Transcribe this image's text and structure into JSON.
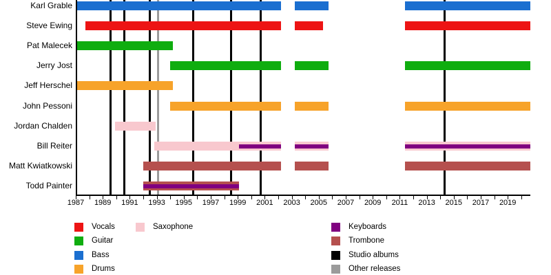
{
  "chart_data": {
    "type": "timeline",
    "axis": {
      "start_year": 1987,
      "end_year": 2020.7,
      "label_years": [
        1987,
        1989,
        1991,
        1993,
        1995,
        1997,
        1999,
        2001,
        2003,
        2005,
        2007,
        2009,
        2011,
        2013,
        2015,
        2017,
        2019
      ],
      "minor_tick_every_year": true
    },
    "colors": {
      "vocals": "#ED1414",
      "guitar": "#0FAD0F",
      "bass": "#1B6FD0",
      "drums": "#F7A32A",
      "saxophone": "#F8C8CE",
      "keyboards": "#800080",
      "trombone": "#B5504E",
      "studio_albums": "#000000",
      "other_releases": "#9B9B9B"
    },
    "members": [
      {
        "name": "Karl Grable",
        "instruments": [
          "Bass"
        ],
        "bars": [
          {
            "from": 1987.0,
            "to": 2002.2,
            "color": "#1B6FD0"
          },
          {
            "from": 2003.2,
            "to": 2005.7,
            "color": "#1B6FD0"
          },
          {
            "from": 2011.4,
            "to": 2020.7,
            "color": "#1B6FD0"
          }
        ]
      },
      {
        "name": "Steve Ewing",
        "instruments": [
          "Vocals"
        ],
        "bars": [
          {
            "from": 1987.7,
            "to": 2002.2,
            "color": "#ED1414"
          },
          {
            "from": 2003.2,
            "to": 2005.3,
            "color": "#ED1414"
          },
          {
            "from": 2011.4,
            "to": 2020.7,
            "color": "#ED1414"
          }
        ]
      },
      {
        "name": "Pat Malecek",
        "instruments": [
          "Guitar"
        ],
        "bars": [
          {
            "from": 1987.0,
            "to": 1994.2,
            "color": "#0FAD0F"
          }
        ]
      },
      {
        "name": "Jerry Jost",
        "instruments": [
          "Guitar"
        ],
        "bars": [
          {
            "from": 1994.0,
            "to": 2002.2,
            "color": "#0FAD0F"
          },
          {
            "from": 2003.2,
            "to": 2005.7,
            "color": "#0FAD0F"
          },
          {
            "from": 2011.4,
            "to": 2020.7,
            "color": "#0FAD0F"
          }
        ]
      },
      {
        "name": "Jeff Herschel",
        "instruments": [
          "Drums"
        ],
        "bars": [
          {
            "from": 1987.0,
            "to": 1994.2,
            "color": "#F7A32A"
          }
        ]
      },
      {
        "name": "John Pessoni",
        "instruments": [
          "Drums"
        ],
        "bars": [
          {
            "from": 1994.0,
            "to": 2002.2,
            "color": "#F7A32A"
          },
          {
            "from": 2003.2,
            "to": 2005.7,
            "color": "#F7A32A"
          },
          {
            "from": 2011.4,
            "to": 2020.7,
            "color": "#F7A32A"
          }
        ]
      },
      {
        "name": "Jordan Chalden",
        "instruments": [
          "Saxophone"
        ],
        "bars": [
          {
            "from": 1989.9,
            "to": 1992.9,
            "color": "#F8C8CE"
          }
        ]
      },
      {
        "name": "Bill Reiter",
        "instruments": [
          "Saxophone",
          "Keyboards"
        ],
        "bars": [
          {
            "from": 1992.8,
            "to": 2002.2,
            "color": "#F8C8CE",
            "stripe_color": "#800080",
            "stripe_from": 1999.1,
            "stripe_to": 2002.2
          },
          {
            "from": 2003.2,
            "to": 2005.7,
            "color": "#F8C8CE",
            "stripe_color": "#800080"
          },
          {
            "from": 2011.4,
            "to": 2020.7,
            "color": "#F8C8CE",
            "stripe_color": "#800080"
          }
        ]
      },
      {
        "name": "Matt Kwiatkowski",
        "instruments": [
          "Trombone"
        ],
        "bars": [
          {
            "from": 1992.0,
            "to": 2002.2,
            "color": "#B5504E"
          },
          {
            "from": 2003.2,
            "to": 2005.7,
            "color": "#B5504E"
          },
          {
            "from": 2011.4,
            "to": 2020.7,
            "color": "#B5504E"
          }
        ]
      },
      {
        "name": "Todd Painter",
        "instruments": [
          "Trombone",
          "Keyboards"
        ],
        "bars": [
          {
            "from": 1992.0,
            "to": 1999.1,
            "color": "#B5504E",
            "stripe_color": "#800080"
          }
        ]
      }
    ],
    "events": {
      "studio_albums": [
        1989.6,
        1990.6,
        1992.5,
        1995.7,
        1998.5,
        2000.7,
        2014.3
      ],
      "other_releases": [
        1993.1
      ]
    }
  },
  "legend": {
    "items": [
      {
        "label": "Vocals",
        "color": "#ED1414",
        "col": 0,
        "row": 0
      },
      {
        "label": "Guitar",
        "color": "#0FAD0F",
        "col": 0,
        "row": 1
      },
      {
        "label": "Bass",
        "color": "#1B6FD0",
        "col": 0,
        "row": 2
      },
      {
        "label": "Drums",
        "color": "#F7A32A",
        "col": 0,
        "row": 3
      },
      {
        "label": "Saxophone",
        "color": "#F8C8CE",
        "col": 1,
        "row": 0
      },
      {
        "label": "Keyboards",
        "color": "#800080",
        "col": 2,
        "row": 0
      },
      {
        "label": "Trombone",
        "color": "#B5504E",
        "col": 2,
        "row": 1
      },
      {
        "label": "Studio albums",
        "color": "#000000",
        "col": 2,
        "row": 2
      },
      {
        "label": "Other releases",
        "color": "#9B9B9B",
        "col": 2,
        "row": 3
      }
    ]
  }
}
